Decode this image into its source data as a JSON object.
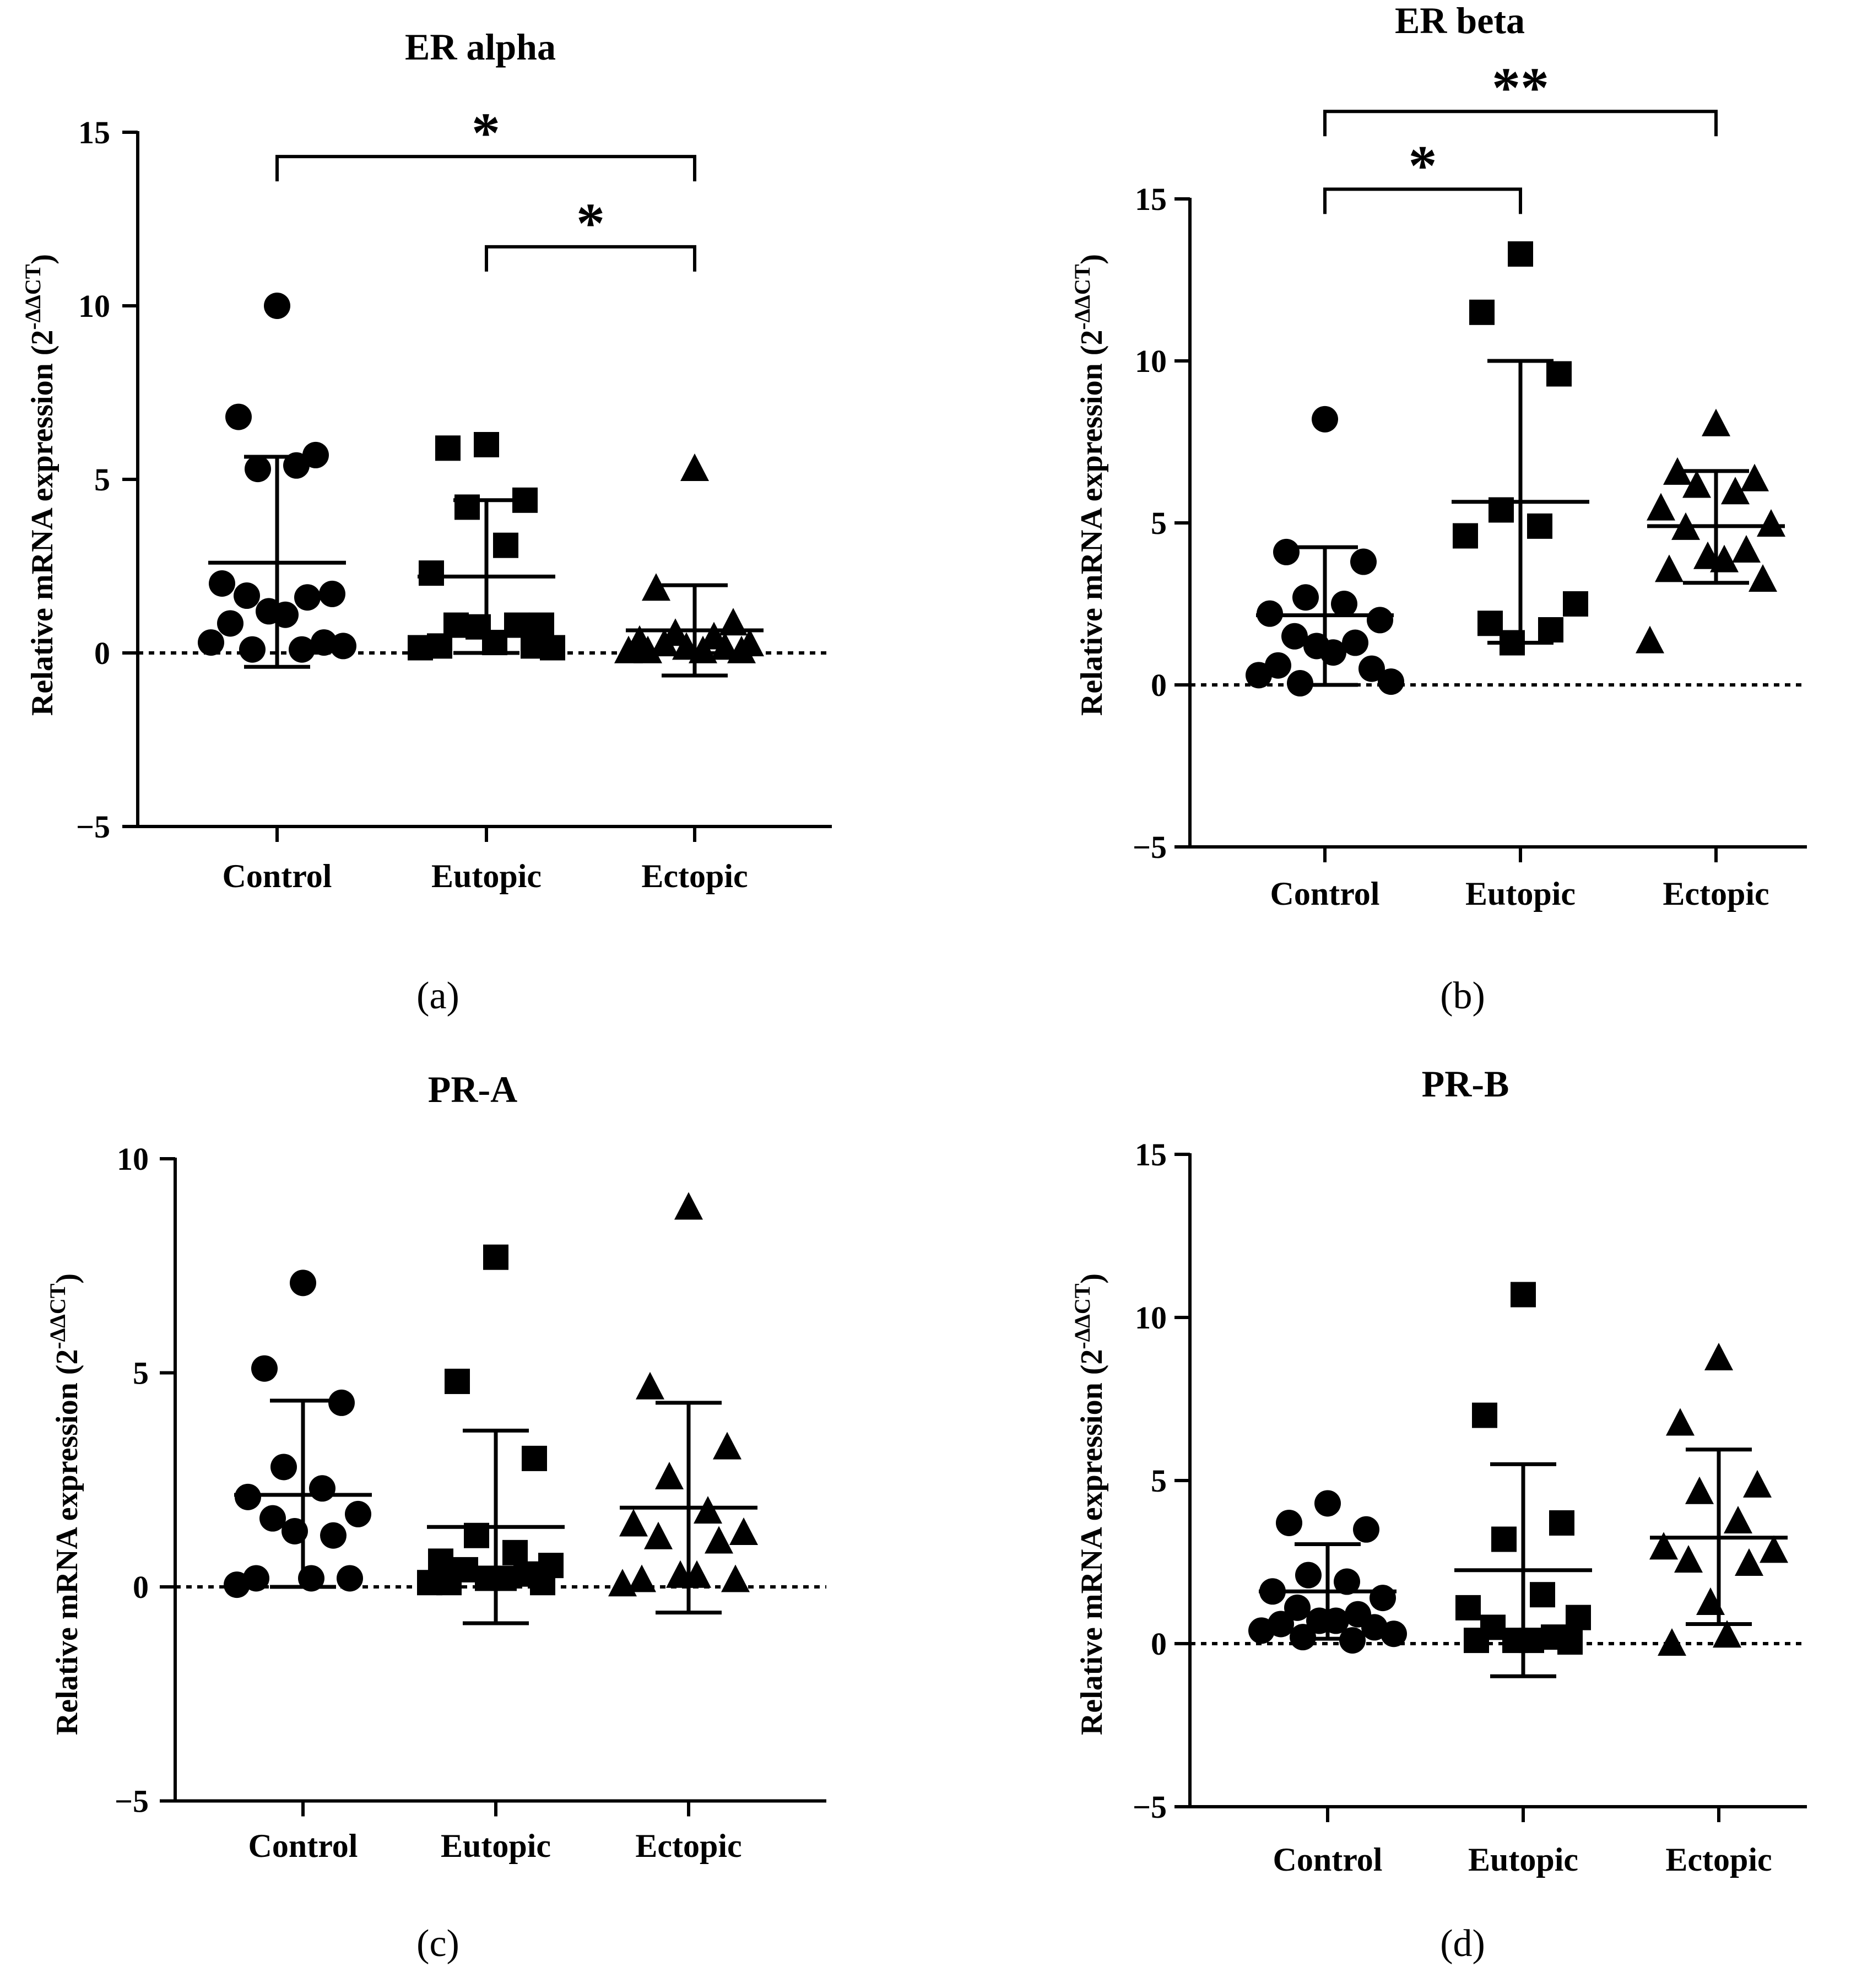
{
  "chart_data": [
    {
      "type": "scatter",
      "panel_label": "(a)",
      "title": "ER alpha",
      "ylabel_main": "Relative mRNA expression (2",
      "ylabel_sup": "-ΔΔCT",
      "ylabel_close": ")",
      "ylim": [
        -5,
        15
      ],
      "yticks": [
        "−5",
        "0",
        "5",
        "10",
        "15"
      ],
      "ytick_values": [
        -5,
        0,
        5,
        10,
        15
      ],
      "categories": [
        "Control",
        "Eutopic",
        "Ectopic"
      ],
      "series": [
        {
          "name": "Control",
          "marker": "circle",
          "values": [
            10.0,
            6.8,
            5.7,
            5.3,
            5.4,
            2.0,
            1.7,
            1.65,
            1.6,
            1.2,
            1.1,
            0.85,
            0.3,
            0.3,
            0.2,
            0.1,
            0.1
          ],
          "mean": 2.6,
          "sd_low": -0.4,
          "sd_high": 5.65
        },
        {
          "name": "Eutopic",
          "marker": "square",
          "values": [
            6.0,
            5.9,
            4.4,
            4.2,
            3.1,
            2.3,
            0.8,
            0.8,
            0.8,
            0.75,
            0.3,
            0.2,
            0.2,
            0.15,
            0.15
          ],
          "mean": 2.2,
          "sd_low": 0.0,
          "sd_high": 4.4
        },
        {
          "name": "Ectopic",
          "marker": "triangle",
          "values": [
            5.35,
            1.9,
            0.9,
            0.6,
            0.5,
            0.4,
            0.3,
            0.3,
            0.2,
            0.2,
            0.1,
            0.1,
            0.1,
            0.1
          ],
          "mean": 0.65,
          "sd_low": -0.65,
          "sd_high": 1.95
        }
      ],
      "significance": [
        {
          "from": "Control",
          "to": "Ectopic",
          "label": "*",
          "y": 14.3
        },
        {
          "from": "Eutopic",
          "to": "Ectopic",
          "label": "*",
          "y": 11.7
        }
      ]
    },
    {
      "type": "scatter",
      "panel_label": "(b)",
      "title": "ER beta",
      "ylabel_main": "Relative mRNA expression (2",
      "ylabel_sup": "-ΔΔCT",
      "ylabel_close": ")",
      "ylim": [
        -5,
        15
      ],
      "yticks": [
        "−5",
        "0",
        "5",
        "10",
        "15"
      ],
      "ytick_values": [
        -5,
        0,
        5,
        10,
        15
      ],
      "categories": [
        "Control",
        "Eutopic",
        "Ectopic"
      ],
      "series": [
        {
          "name": "Control",
          "marker": "circle",
          "values": [
            8.2,
            4.1,
            3.8,
            2.7,
            2.5,
            2.2,
            2.0,
            1.5,
            1.3,
            1.2,
            1.0,
            0.6,
            0.5,
            0.3,
            0.1,
            0.05
          ],
          "mean": 2.15,
          "sd_low": 0.0,
          "sd_high": 4.25
        },
        {
          "name": "Eutopic",
          "marker": "square",
          "values": [
            13.3,
            11.5,
            9.6,
            5.4,
            4.9,
            4.6,
            2.5,
            1.9,
            1.7,
            1.3
          ],
          "mean": 5.65,
          "sd_low": 1.3,
          "sd_high": 10.0
        },
        {
          "name": "Ectopic",
          "marker": "triangle",
          "values": [
            8.1,
            6.6,
            6.4,
            6.2,
            6.0,
            5.5,
            5.0,
            4.9,
            4.2,
            4.0,
            3.9,
            3.6,
            3.3,
            1.4
          ],
          "mean": 4.9,
          "sd_low": 3.15,
          "sd_high": 6.6
        }
      ],
      "significance": [
        {
          "from": "Control",
          "to": "Ectopic",
          "label": "**",
          "y": 17.7
        },
        {
          "from": "Control",
          "to": "Eutopic",
          "label": "*",
          "y": 15.3
        }
      ]
    },
    {
      "type": "scatter",
      "panel_label": "(c)",
      "title": "PR-A",
      "ylabel_main": "Relative mRNA expression (2",
      "ylabel_sup": "-ΔΔCT",
      "ylabel_close": ")",
      "ylim": [
        -5,
        10
      ],
      "yticks": [
        "−5",
        "0",
        "5",
        "10"
      ],
      "ytick_values": [
        -5,
        0,
        5,
        10
      ],
      "categories": [
        "Control",
        "Eutopic",
        "Ectopic"
      ],
      "series": [
        {
          "name": "Control",
          "marker": "circle",
          "values": [
            7.1,
            5.1,
            4.3,
            2.8,
            2.3,
            2.1,
            1.7,
            1.6,
            1.2,
            1.3,
            0.2,
            0.2,
            0.2,
            0.05
          ],
          "mean": 2.15,
          "sd_low": 0.0,
          "sd_high": 4.35
        },
        {
          "name": "Eutopic",
          "marker": "square",
          "values": [
            7.7,
            4.8,
            3.0,
            1.2,
            0.8,
            0.6,
            0.5,
            0.4,
            0.3,
            0.2,
            0.2,
            0.1,
            0.1,
            0.1
          ],
          "mean": 1.4,
          "sd_low": -0.85,
          "sd_high": 3.65
        },
        {
          "name": "Ectopic",
          "marker": "triangle",
          "values": [
            8.9,
            4.7,
            3.3,
            2.6,
            1.8,
            1.5,
            1.3,
            1.2,
            1.1,
            0.3,
            0.3,
            0.2,
            0.2,
            0.1
          ],
          "mean": 1.85,
          "sd_low": -0.6,
          "sd_high": 4.3
        }
      ],
      "significance": []
    },
    {
      "type": "scatter",
      "panel_label": "(d)",
      "title": "PR-B",
      "ylabel_main": "Relative mRNA expression (2",
      "ylabel_sup": "-ΔΔCT",
      "ylabel_close": ")",
      "ylim": [
        -5,
        15
      ],
      "yticks": [
        "−5",
        "0",
        "5",
        "10",
        "15"
      ],
      "ytick_values": [
        -5,
        0,
        5,
        10,
        15
      ],
      "categories": [
        "Control",
        "Eutopic",
        "Ectopic"
      ],
      "series": [
        {
          "name": "Control",
          "marker": "circle",
          "values": [
            4.3,
            3.7,
            3.5,
            2.1,
            1.9,
            1.6,
            1.4,
            1.1,
            0.9,
            0.7,
            0.7,
            0.6,
            0.5,
            0.4,
            0.3,
            0.2,
            0.1
          ],
          "mean": 1.6,
          "sd_low": 0.15,
          "sd_high": 3.05
        },
        {
          "name": "Eutopic",
          "marker": "square",
          "values": [
            10.7,
            7.0,
            3.7,
            3.2,
            1.5,
            1.1,
            0.8,
            0.5,
            0.2,
            0.1,
            0.1,
            0.1,
            0.05
          ],
          "mean": 2.25,
          "sd_low": -1.0,
          "sd_high": 5.5
        },
        {
          "name": "Ectopic",
          "marker": "triangle",
          "values": [
            8.8,
            6.8,
            4.9,
            4.7,
            3.8,
            3.0,
            2.9,
            2.6,
            2.5,
            1.3,
            0.3,
            0.05
          ],
          "mean": 3.25,
          "sd_low": 0.6,
          "sd_high": 5.95
        }
      ],
      "significance": []
    }
  ]
}
